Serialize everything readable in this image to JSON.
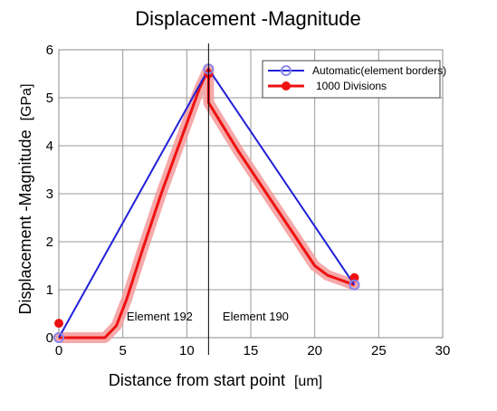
{
  "chart_data": {
    "type": "line",
    "title": "Displacement -Magnitude",
    "xlabel": "Distance from start point",
    "xunit": "[um]",
    "ylabel": "Displacement -Magnitude",
    "yunit": "[GPa]",
    "xlim": [
      0,
      30
    ],
    "ylim": [
      0,
      6
    ],
    "xticks": [
      "0",
      "5",
      "10",
      "15",
      "20",
      "25",
      "30"
    ],
    "yticks": [
      "0",
      "1",
      "2",
      "3",
      "4",
      "5",
      "6"
    ],
    "grid": true,
    "legend_position": "top-right",
    "series": [
      {
        "name": "Automatic(element borders)",
        "color": "#2020d8",
        "marker": "open-circle",
        "x": [
          0,
          11.7,
          23.1
        ],
        "y": [
          0,
          5.6,
          1.1
        ]
      },
      {
        "name": "1000 Divisions",
        "color": "#ee1111",
        "marker": "filled-circle",
        "x": [
          0,
          3.6,
          4.5,
          5.3,
          6.5,
          8.0,
          9.5,
          11.0,
          11.7,
          11.7,
          14.0,
          17.0,
          20.0,
          21.0,
          23.1
        ],
        "y": [
          0,
          0,
          0.25,
          0.8,
          1.8,
          3.0,
          4.1,
          5.2,
          5.6,
          4.9,
          3.9,
          2.7,
          1.5,
          1.3,
          1.1
        ],
        "endpoints": [
          {
            "x": 0,
            "y": 0.3
          },
          {
            "x": 11.7,
            "y": 5.5
          },
          {
            "x": 23.1,
            "y": 1.25
          }
        ]
      }
    ],
    "annotations": [
      {
        "text": "Element 192",
        "x": 5.3,
        "y": 0.45
      },
      {
        "text": "Element 190",
        "x": 12.8,
        "y": 0.45
      }
    ],
    "vertical_line_x": 11.7
  }
}
